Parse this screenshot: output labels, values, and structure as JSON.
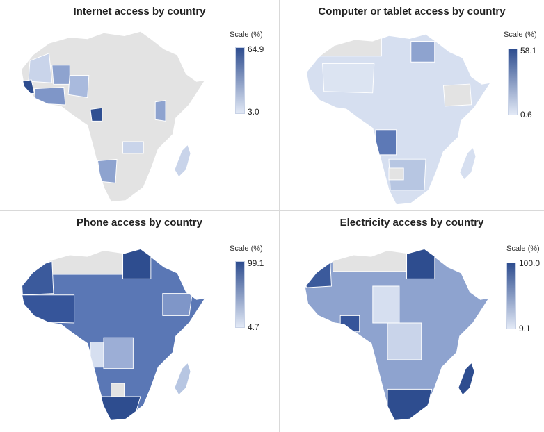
{
  "panels": [
    {
      "id": "internet",
      "title": "Internet access by country",
      "scale_label": "Scale (%)",
      "scale_max": "64.9",
      "scale_min": "3.0",
      "low_color": "#e2e9f6",
      "high_color": "#2e4d8f",
      "no_data_color": "#e3e3e3"
    },
    {
      "id": "computer",
      "title": "Computer or tablet access by country",
      "scale_label": "Scale (%)",
      "scale_max": "58.1",
      "scale_min": "0.6",
      "low_color": "#e2e9f6",
      "high_color": "#2e4d8f",
      "no_data_color": "#e3e3e3"
    },
    {
      "id": "phone",
      "title": "Phone access by country",
      "scale_label": "Scale (%)",
      "scale_max": "99.1",
      "scale_min": "4.7",
      "low_color": "#e2e9f6",
      "high_color": "#2e4d8f",
      "no_data_color": "#e3e3e3"
    },
    {
      "id": "electricity",
      "title": "Electricity access by country",
      "scale_label": "Scale (%)",
      "scale_max": "100.0",
      "scale_min": "9.1",
      "low_color": "#e2e9f6",
      "high_color": "#2e4d8f",
      "no_data_color": "#e3e3e3"
    }
  ]
}
